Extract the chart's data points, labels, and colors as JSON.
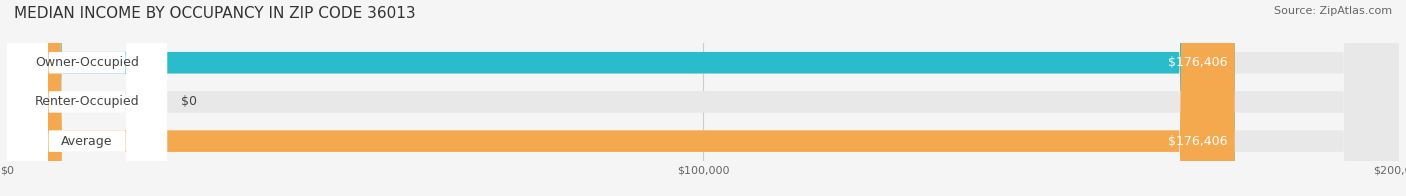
{
  "title": "MEDIAN INCOME BY OCCUPANCY IN ZIP CODE 36013",
  "source": "Source: ZipAtlas.com",
  "categories": [
    "Owner-Occupied",
    "Renter-Occupied",
    "Average"
  ],
  "values": [
    176406,
    0,
    176406
  ],
  "bar_colors": [
    "#2bbccc",
    "#c9a8d4",
    "#f5a94e"
  ],
  "label_colors": [
    "#2bbccc",
    "#c9a8d4",
    "#f5a94e"
  ],
  "value_labels": [
    "$176,406",
    "$0",
    "$176,406"
  ],
  "xlim": [
    0,
    200000
  ],
  "xticks": [
    0,
    100000,
    200000
  ],
  "xtick_labels": [
    "$0",
    "$100,000",
    "$200,000"
  ],
  "bar_height": 0.55,
  "background_color": "#f5f5f5",
  "bar_bg_color": "#e8e8e8",
  "title_fontsize": 11,
  "source_fontsize": 8,
  "label_fontsize": 9,
  "value_fontsize": 9
}
